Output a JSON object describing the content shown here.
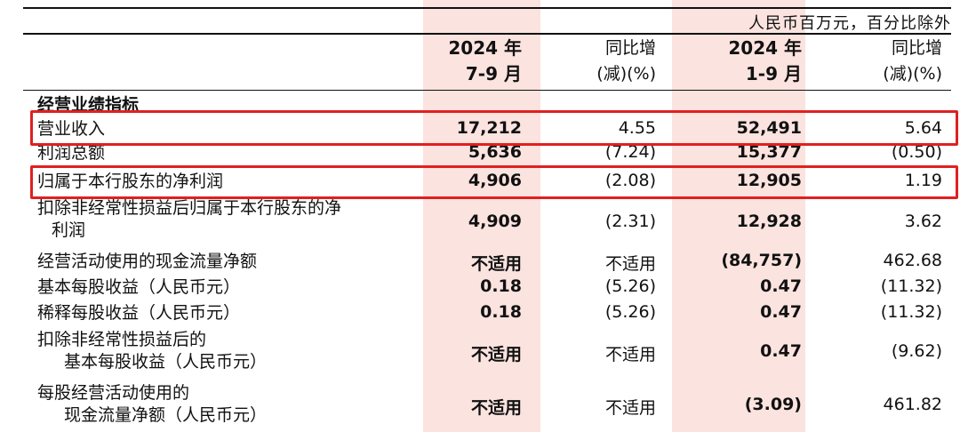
{
  "unit_note": "人民币百万元，百分比除外",
  "headers": {
    "col1_line1": "2024 年",
    "col1_line2": "7-9 月",
    "col2_line1": "同比增",
    "col2_line2": "(减)(%)",
    "col3_line1": "2024 年",
    "col3_line2": "1-9 月",
    "col4_line1": "同比增",
    "col4_line2": "(减)(%)"
  },
  "section_title": "经营业绩指标",
  "rows": [
    {
      "label": "营业收入",
      "q3": "17,212",
      "q3_yoy": "4.55",
      "ytd": "52,491",
      "ytd_yoy": "5.64",
      "highlighted": true
    },
    {
      "label": "利润总额",
      "q3": "5,636",
      "q3_yoy": "(7.24)",
      "ytd": "15,377",
      "ytd_yoy": "(0.50)",
      "highlighted": false
    },
    {
      "label": "归属于本行股东的净利润",
      "q3": "4,906",
      "q3_yoy": "(2.08)",
      "ytd": "12,905",
      "ytd_yoy": "1.19",
      "highlighted": true
    },
    {
      "label": "扣除非经常性损益后归属于本行股东的净",
      "label2": "利润",
      "q3": "4,909",
      "q3_yoy": "(2.31)",
      "ytd": "12,928",
      "ytd_yoy": "3.62",
      "highlighted": false
    },
    {
      "label": "经营活动使用的现金流量净额",
      "q3": "不适用",
      "q3_yoy": "不适用",
      "ytd": "(84,757)",
      "ytd_yoy": "462.68",
      "highlighted": false
    },
    {
      "label": "基本每股收益（人民币元）",
      "q3": "0.18",
      "q3_yoy": "(5.26)",
      "ytd": "0.47",
      "ytd_yoy": "(11.32)",
      "highlighted": false
    },
    {
      "label": "稀释每股收益（人民币元）",
      "q3": "0.18",
      "q3_yoy": "(5.26)",
      "ytd": "0.47",
      "ytd_yoy": "(11.32)",
      "highlighted": false
    },
    {
      "label": "扣除非经常性损益后的",
      "label2": "基本每股收益（人民币元）",
      "q3": "不适用",
      "q3_yoy": "不适用",
      "ytd": "0.47",
      "ytd_yoy": "(9.62)",
      "highlighted": false
    },
    {
      "label": "每股经营活动使用的",
      "label2": "现金流量净额（人民币元）",
      "q3": "不适用",
      "q3_yoy": "不适用",
      "ytd": "(3.09)",
      "ytd_yoy": "461.82",
      "highlighted": false
    }
  ],
  "colors": {
    "highlight_column": "#fbe3df",
    "annotation_box": "#e02020"
  }
}
